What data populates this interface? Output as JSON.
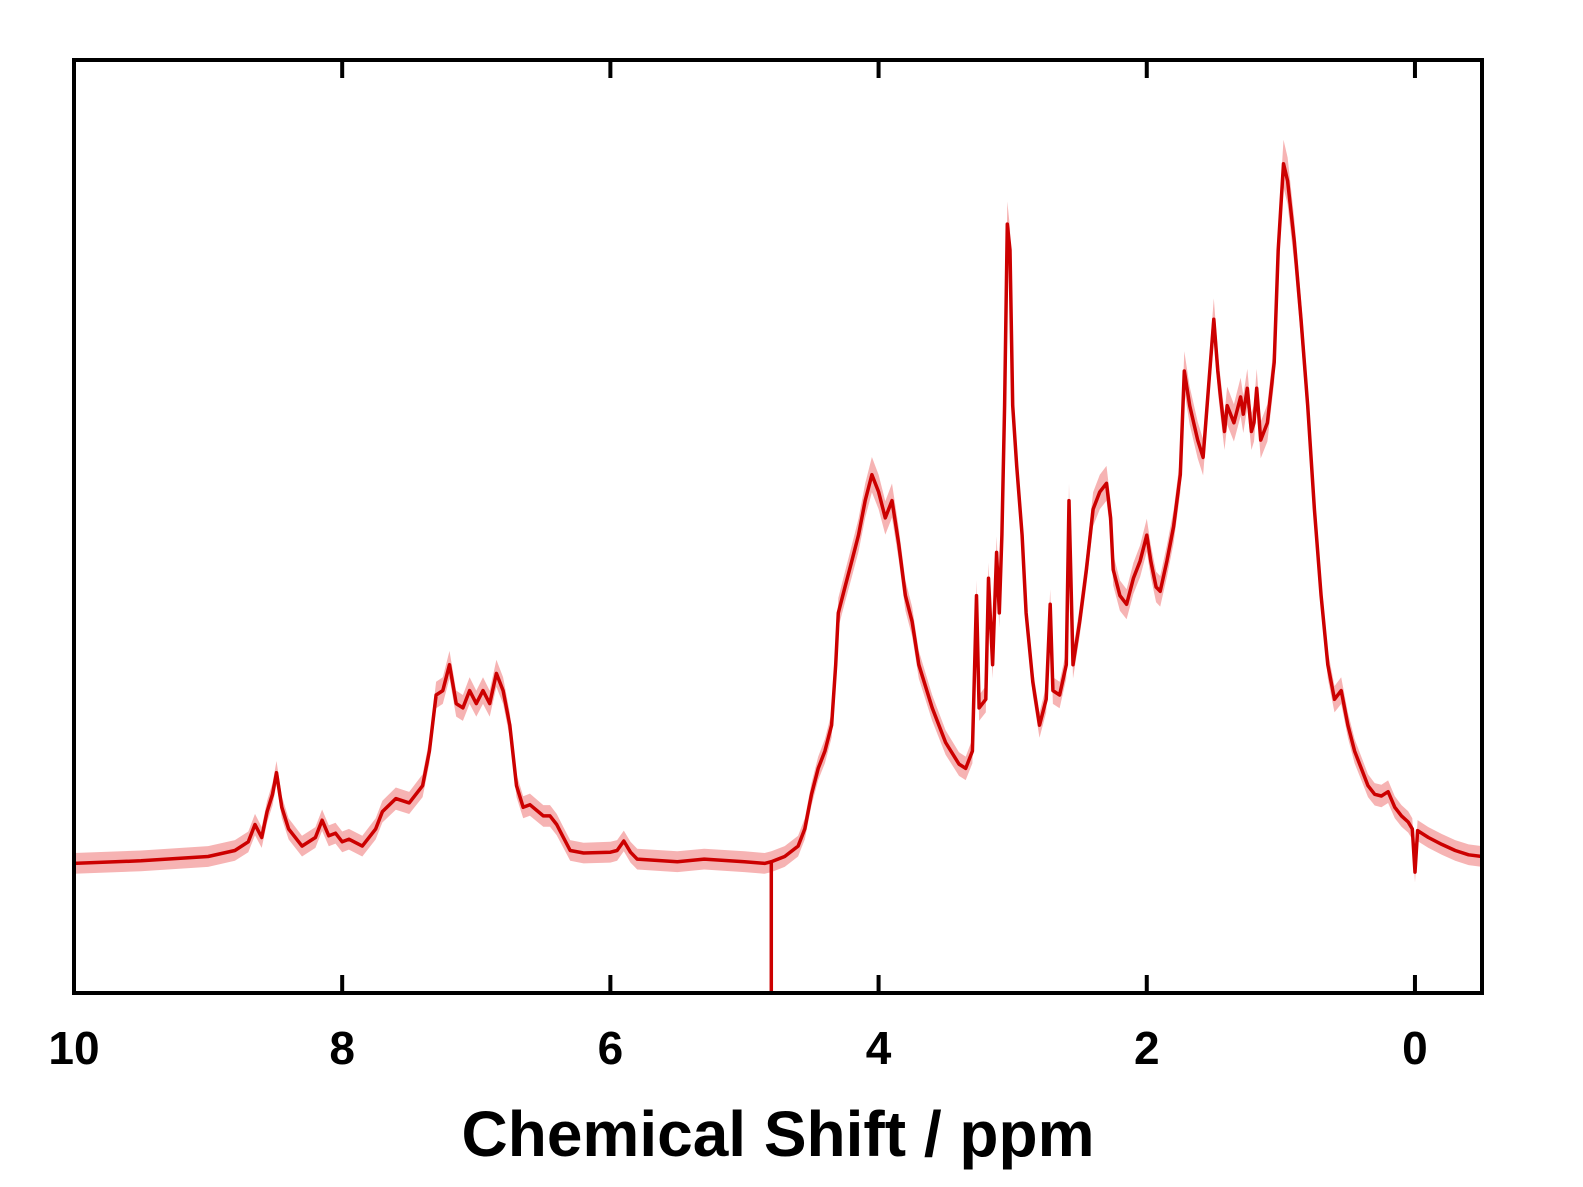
{
  "chart_data": {
    "type": "line",
    "title": "",
    "xlabel": "Chemical Shift / ppm",
    "ylabel": "",
    "xlim": [
      10,
      -0.5
    ],
    "ylim": [
      -0.08,
      1.0
    ],
    "x_reversed": true,
    "grid": false,
    "legend": "none",
    "x_ticks": [
      {
        "value": 10,
        "label": "10"
      },
      {
        "value": 8,
        "label": "8"
      },
      {
        "value": 6,
        "label": "6"
      },
      {
        "value": 4,
        "label": "4"
      },
      {
        "value": 2,
        "label": "2"
      },
      {
        "value": 0,
        "label": "0"
      }
    ],
    "colors": {
      "line": "#cc0000",
      "band": "#f4a6a6"
    },
    "series": [
      {
        "band_width": 0.012,
        "points": [
          [
            10.0,
            0.07
          ],
          [
            9.5,
            0.073
          ],
          [
            9.0,
            0.078
          ],
          [
            8.8,
            0.085
          ],
          [
            8.7,
            0.095
          ],
          [
            8.65,
            0.115
          ],
          [
            8.6,
            0.1
          ],
          [
            8.56,
            0.13
          ],
          [
            8.52,
            0.15
          ],
          [
            8.49,
            0.175
          ],
          [
            8.45,
            0.135
          ],
          [
            8.4,
            0.11
          ],
          [
            8.3,
            0.09
          ],
          [
            8.2,
            0.1
          ],
          [
            8.15,
            0.12
          ],
          [
            8.1,
            0.102
          ],
          [
            8.05,
            0.105
          ],
          [
            8.0,
            0.095
          ],
          [
            7.95,
            0.098
          ],
          [
            7.85,
            0.09
          ],
          [
            7.75,
            0.11
          ],
          [
            7.7,
            0.13
          ],
          [
            7.6,
            0.145
          ],
          [
            7.5,
            0.14
          ],
          [
            7.4,
            0.16
          ],
          [
            7.35,
            0.2
          ],
          [
            7.3,
            0.265
          ],
          [
            7.25,
            0.27
          ],
          [
            7.2,
            0.3
          ],
          [
            7.15,
            0.255
          ],
          [
            7.1,
            0.25
          ],
          [
            7.05,
            0.27
          ],
          [
            7.0,
            0.255
          ],
          [
            6.95,
            0.27
          ],
          [
            6.9,
            0.255
          ],
          [
            6.85,
            0.29
          ],
          [
            6.8,
            0.27
          ],
          [
            6.75,
            0.23
          ],
          [
            6.7,
            0.16
          ],
          [
            6.65,
            0.135
          ],
          [
            6.6,
            0.138
          ],
          [
            6.5,
            0.125
          ],
          [
            6.45,
            0.125
          ],
          [
            6.4,
            0.115
          ],
          [
            6.35,
            0.1
          ],
          [
            6.3,
            0.085
          ],
          [
            6.2,
            0.082
          ],
          [
            6.0,
            0.083
          ],
          [
            5.95,
            0.085
          ],
          [
            5.9,
            0.096
          ],
          [
            5.85,
            0.083
          ],
          [
            5.8,
            0.075
          ],
          [
            5.5,
            0.072
          ],
          [
            5.3,
            0.075
          ],
          [
            5.0,
            0.072
          ],
          [
            4.85,
            0.07
          ],
          [
            4.8,
            0.072
          ],
          [
            4.7,
            0.078
          ],
          [
            4.6,
            0.09
          ],
          [
            4.55,
            0.11
          ],
          [
            4.5,
            0.15
          ],
          [
            4.45,
            0.18
          ],
          [
            4.4,
            0.2
          ],
          [
            4.35,
            0.23
          ],
          [
            4.32,
            0.3
          ],
          [
            4.3,
            0.36
          ],
          [
            4.25,
            0.39
          ],
          [
            4.2,
            0.42
          ],
          [
            4.15,
            0.45
          ],
          [
            4.1,
            0.49
          ],
          [
            4.05,
            0.52
          ],
          [
            4.0,
            0.5
          ],
          [
            3.95,
            0.47
          ],
          [
            3.9,
            0.49
          ],
          [
            3.85,
            0.44
          ],
          [
            3.8,
            0.38
          ],
          [
            3.75,
            0.35
          ],
          [
            3.7,
            0.3
          ],
          [
            3.6,
            0.25
          ],
          [
            3.5,
            0.21
          ],
          [
            3.4,
            0.185
          ],
          [
            3.35,
            0.18
          ],
          [
            3.3,
            0.2
          ],
          [
            3.27,
            0.38
          ],
          [
            3.25,
            0.25
          ],
          [
            3.2,
            0.26
          ],
          [
            3.18,
            0.4
          ],
          [
            3.15,
            0.3
          ],
          [
            3.12,
            0.43
          ],
          [
            3.1,
            0.36
          ],
          [
            3.08,
            0.45
          ],
          [
            3.06,
            0.6
          ],
          [
            3.04,
            0.81
          ],
          [
            3.02,
            0.78
          ],
          [
            3.0,
            0.6
          ],
          [
            2.97,
            0.53
          ],
          [
            2.93,
            0.45
          ],
          [
            2.9,
            0.36
          ],
          [
            2.85,
            0.28
          ],
          [
            2.8,
            0.23
          ],
          [
            2.75,
            0.26
          ],
          [
            2.72,
            0.37
          ],
          [
            2.7,
            0.27
          ],
          [
            2.65,
            0.265
          ],
          [
            2.6,
            0.3
          ],
          [
            2.58,
            0.49
          ],
          [
            2.55,
            0.3
          ],
          [
            2.5,
            0.35
          ],
          [
            2.45,
            0.41
          ],
          [
            2.4,
            0.48
          ],
          [
            2.35,
            0.5
          ],
          [
            2.3,
            0.51
          ],
          [
            2.27,
            0.47
          ],
          [
            2.25,
            0.41
          ],
          [
            2.2,
            0.38
          ],
          [
            2.15,
            0.37
          ],
          [
            2.1,
            0.4
          ],
          [
            2.05,
            0.42
          ],
          [
            2.0,
            0.45
          ],
          [
            1.97,
            0.42
          ],
          [
            1.93,
            0.39
          ],
          [
            1.9,
            0.385
          ],
          [
            1.85,
            0.42
          ],
          [
            1.8,
            0.46
          ],
          [
            1.75,
            0.52
          ],
          [
            1.72,
            0.64
          ],
          [
            1.68,
            0.6
          ],
          [
            1.62,
            0.56
          ],
          [
            1.58,
            0.54
          ],
          [
            1.55,
            0.6
          ],
          [
            1.5,
            0.7
          ],
          [
            1.47,
            0.64
          ],
          [
            1.45,
            0.61
          ],
          [
            1.42,
            0.57
          ],
          [
            1.4,
            0.6
          ],
          [
            1.35,
            0.58
          ],
          [
            1.3,
            0.61
          ],
          [
            1.28,
            0.59
          ],
          [
            1.25,
            0.62
          ],
          [
            1.22,
            0.57
          ],
          [
            1.2,
            0.58
          ],
          [
            1.18,
            0.62
          ],
          [
            1.15,
            0.56
          ],
          [
            1.1,
            0.58
          ],
          [
            1.05,
            0.65
          ],
          [
            1.02,
            0.78
          ],
          [
            0.98,
            0.88
          ],
          [
            0.95,
            0.86
          ],
          [
            0.9,
            0.79
          ],
          [
            0.85,
            0.7
          ],
          [
            0.8,
            0.6
          ],
          [
            0.75,
            0.48
          ],
          [
            0.7,
            0.38
          ],
          [
            0.65,
            0.3
          ],
          [
            0.6,
            0.26
          ],
          [
            0.55,
            0.27
          ],
          [
            0.5,
            0.23
          ],
          [
            0.45,
            0.2
          ],
          [
            0.4,
            0.18
          ],
          [
            0.35,
            0.16
          ],
          [
            0.3,
            0.15
          ],
          [
            0.25,
            0.148
          ],
          [
            0.2,
            0.153
          ],
          [
            0.15,
            0.135
          ],
          [
            0.1,
            0.125
          ],
          [
            0.05,
            0.118
          ],
          [
            0.02,
            0.11
          ],
          [
            0.0,
            0.06
          ],
          [
            -0.02,
            0.108
          ],
          [
            -0.1,
            0.1
          ],
          [
            -0.2,
            0.092
          ],
          [
            -0.3,
            0.085
          ],
          [
            -0.4,
            0.08
          ],
          [
            -0.5,
            0.078
          ]
        ]
      }
    ],
    "spikes": [
      {
        "x": 4.8,
        "y": -0.08
      },
      {
        "x": 0.0,
        "y": 0.06
      }
    ]
  }
}
